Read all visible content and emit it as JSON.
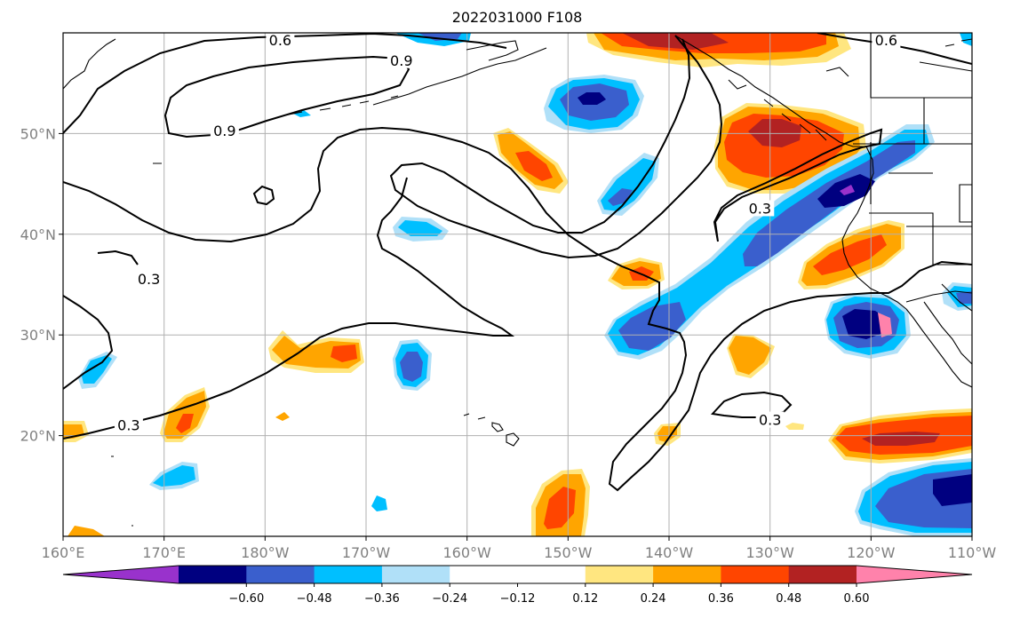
{
  "figure": {
    "title": "2022031000 F108"
  },
  "map": {
    "projection": "equirectangular",
    "lon_range": [
      160,
      250
    ],
    "lat_range": [
      10,
      60
    ],
    "x_ticks": [
      {
        "lon": 160,
        "label": "160°E"
      },
      {
        "lon": 170,
        "label": "170°E"
      },
      {
        "lon": 180,
        "label": "180°W"
      },
      {
        "lon": 190,
        "label": "170°W"
      },
      {
        "lon": 200,
        "label": "160°W"
      },
      {
        "lon": 210,
        "label": "150°W"
      },
      {
        "lon": 220,
        "label": "140°W"
      },
      {
        "lon": 230,
        "label": "130°W"
      },
      {
        "lon": 240,
        "label": "120°W"
      },
      {
        "lon": 250,
        "label": "110°W"
      }
    ],
    "y_ticks": [
      {
        "lat": 20,
        "label": "20°N"
      },
      {
        "lat": 30,
        "label": "30°N"
      },
      {
        "lat": 40,
        "label": "40°N"
      },
      {
        "lat": 50,
        "label": "50°N"
      }
    ],
    "grid": true
  },
  "contour_labels": [
    {
      "text": "0.6",
      "lon": 181.5,
      "lat": 59.2
    },
    {
      "text": "0.9",
      "lon": 193.5,
      "lat": 57.2
    },
    {
      "text": "0.6",
      "lon": 241.5,
      "lat": 59.2
    },
    {
      "text": "0.9",
      "lon": 176.0,
      "lat": 50.2
    },
    {
      "text": "0.3",
      "lon": 168.5,
      "lat": 35.5
    },
    {
      "text": "0.3",
      "lon": 229.0,
      "lat": 42.5
    },
    {
      "text": "0.3",
      "lon": 166.5,
      "lat": 21.0
    },
    {
      "text": "0.3",
      "lon": 230.0,
      "lat": 21.5
    }
  ],
  "colorbar": {
    "colors": [
      "#9932cc",
      "#000080",
      "#3a5fcd",
      "#00bfff",
      "#b0e0f8",
      "#ffffff",
      "#ffffff",
      "#ffe680",
      "#ffa500",
      "#ff4500",
      "#b22222",
      "#ff82ab"
    ],
    "tick_labels": [
      "−0.60",
      "−0.48",
      "−0.36",
      "−0.24",
      "−0.12",
      "0.12",
      "0.24",
      "0.36",
      "0.48",
      "0.60"
    ]
  },
  "legend_colors": {
    "purple": "#9932cc",
    "navy": "#000080",
    "royal_blue": "#3a5fcd",
    "sky_blue": "#00bfff",
    "light_blue": "#b0e0f8",
    "light_yellow": "#ffe680",
    "orange": "#ffa500",
    "red_orange": "#ff4500",
    "dark_red": "#b22222",
    "pink": "#ff82ab"
  }
}
